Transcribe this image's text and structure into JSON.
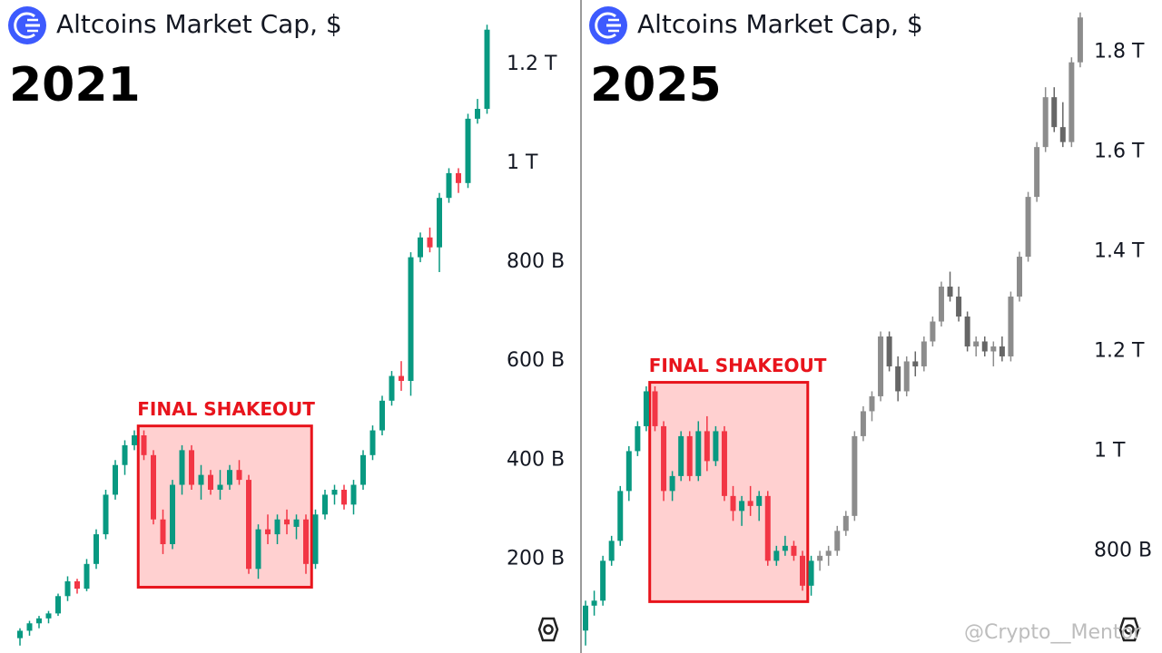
{
  "chart_data": [
    {
      "type": "candlestick",
      "title": "Altcoins Market Cap, $",
      "subtitle": "2021",
      "ylim": [
        10,
        1330
      ],
      "yticks": [
        {
          "value": 200,
          "label": "200 B"
        },
        {
          "value": 400,
          "label": "400 B"
        },
        {
          "value": 600,
          "label": "600 B"
        },
        {
          "value": 800,
          "label": "800 B"
        },
        {
          "value": 1000,
          "label": "1 T"
        },
        {
          "value": 1200,
          "label": "1.2 T"
        }
      ],
      "series": [
        {
          "up_color": "#089981",
          "down_color": "#f23645",
          "open": [
            40,
            55,
            70,
            80,
            90,
            125,
            155,
            140,
            190,
            250,
            330,
            390,
            430,
            450,
            410,
            280,
            230,
            350,
            420,
            350,
            370,
            340,
            350,
            380,
            360,
            180,
            260,
            250,
            280,
            265,
            280,
            190,
            290,
            330,
            340,
            310,
            350,
            410,
            460,
            520,
            570,
            560,
            810,
            850,
            830,
            930,
            980,
            960,
            1090,
            1110
          ],
          "high": [
            60,
            75,
            85,
            95,
            130,
            165,
            160,
            200,
            260,
            340,
            400,
            440,
            460,
            460,
            420,
            300,
            360,
            430,
            430,
            390,
            380,
            380,
            390,
            400,
            370,
            270,
            290,
            290,
            300,
            290,
            290,
            300,
            340,
            350,
            350,
            360,
            420,
            470,
            530,
            580,
            600,
            820,
            860,
            870,
            940,
            990,
            990,
            1100,
            1130,
            1280
          ],
          "low": [
            25,
            45,
            60,
            70,
            85,
            115,
            130,
            135,
            180,
            240,
            320,
            370,
            420,
            400,
            270,
            210,
            220,
            330,
            340,
            320,
            330,
            320,
            340,
            350,
            170,
            160,
            230,
            230,
            250,
            240,
            170,
            180,
            280,
            310,
            300,
            290,
            340,
            400,
            450,
            510,
            540,
            530,
            800,
            820,
            780,
            920,
            940,
            950,
            1080,
            1100
          ],
          "close": [
            55,
            70,
            80,
            90,
            125,
            155,
            140,
            190,
            250,
            330,
            390,
            430,
            450,
            410,
            280,
            230,
            350,
            420,
            350,
            370,
            340,
            350,
            380,
            360,
            180,
            260,
            250,
            280,
            270,
            280,
            190,
            290,
            330,
            340,
            310,
            350,
            410,
            460,
            520,
            570,
            560,
            810,
            850,
            830,
            930,
            980,
            960,
            1090,
            1110,
            1270
          ]
        }
      ],
      "annotation": {
        "text": "FINAL SHAKEOUT",
        "start": 13,
        "end": 30,
        "low": 143,
        "high": 469,
        "color": "#e8141c",
        "fill": "#ffd0d0"
      }
    },
    {
      "type": "candlestick",
      "title": "Altcoins Market Cap, $",
      "subtitle": "2025",
      "ylim": [
        595,
        1905
      ],
      "yticks": [
        {
          "value": 800,
          "label": "800 B"
        },
        {
          "value": 1000,
          "label": "1 T"
        },
        {
          "value": 1200,
          "label": "1.2 T"
        },
        {
          "value": 1400,
          "label": "1.4 T"
        },
        {
          "value": 1600,
          "label": "1.6 T"
        },
        {
          "value": 1800,
          "label": "1.8 T"
        }
      ],
      "series": [
        {
          "up_color": "#089981",
          "down_color": "#f23645",
          "open": [
            640,
            690,
            700,
            780,
            820,
            920,
            1000,
            1050,
            1120,
            1050,
            920,
            950,
            1030,
            950,
            1040,
            980,
            1040,
            910,
            880,
            900,
            890,
            910,
            780,
            800,
            810,
            790,
            730
          ],
          "high": [
            700,
            720,
            790,
            830,
            930,
            1010,
            1060,
            1130,
            1130,
            1060,
            960,
            1040,
            1040,
            1060,
            1070,
            1050,
            1050,
            930,
            910,
            930,
            920,
            920,
            810,
            830,
            820,
            800,
            790
          ],
          "low": [
            610,
            670,
            690,
            770,
            810,
            900,
            990,
            1040,
            1040,
            900,
            900,
            940,
            940,
            940,
            960,
            970,
            900,
            860,
            850,
            870,
            860,
            770,
            770,
            790,
            780,
            720,
            710
          ],
          "close": [
            690,
            700,
            780,
            820,
            920,
            1000,
            1050,
            1120,
            1050,
            920,
            950,
            1030,
            950,
            1040,
            980,
            1040,
            910,
            880,
            900,
            890,
            910,
            780,
            800,
            810,
            790,
            730,
            780
          ]
        },
        {
          "up_color": "#8c8c8c",
          "down_color": "#666666",
          "open": [
            780,
            790,
            800,
            840,
            870,
            1030,
            1080,
            1110,
            1230,
            1170,
            1120,
            1180,
            1170,
            1220,
            1260,
            1330,
            1310,
            1270,
            1210,
            1220,
            1200,
            1210,
            1190,
            1310,
            1390,
            1510,
            1610,
            1710,
            1650,
            1620,
            1780
          ],
          "high": [
            800,
            810,
            850,
            880,
            1040,
            1090,
            1120,
            1240,
            1240,
            1190,
            1190,
            1200,
            1230,
            1270,
            1340,
            1360,
            1330,
            1280,
            1230,
            1230,
            1220,
            1230,
            1320,
            1400,
            1520,
            1620,
            1730,
            1730,
            1700,
            1790,
            1880
          ],
          "low": [
            760,
            770,
            790,
            830,
            860,
            1020,
            1060,
            1100,
            1160,
            1100,
            1110,
            1150,
            1160,
            1210,
            1250,
            1300,
            1260,
            1200,
            1190,
            1190,
            1170,
            1180,
            1180,
            1300,
            1380,
            1500,
            1600,
            1640,
            1610,
            1610,
            1770
          ],
          "close": [
            790,
            800,
            840,
            870,
            1030,
            1080,
            1110,
            1230,
            1170,
            1120,
            1180,
            1170,
            1220,
            1260,
            1330,
            1310,
            1270,
            1210,
            1220,
            1200,
            1210,
            1190,
            1310,
            1390,
            1510,
            1610,
            1710,
            1650,
            1620,
            1780,
            1870
          ]
        }
      ],
      "annotation": {
        "text": "FINAL SHAKEOUT",
        "start": 8,
        "end": 25,
        "low": 698,
        "high": 1138,
        "color": "#e8141c",
        "fill": "#ffd0d0"
      }
    }
  ],
  "watermark": "@Crypto__Mentor"
}
